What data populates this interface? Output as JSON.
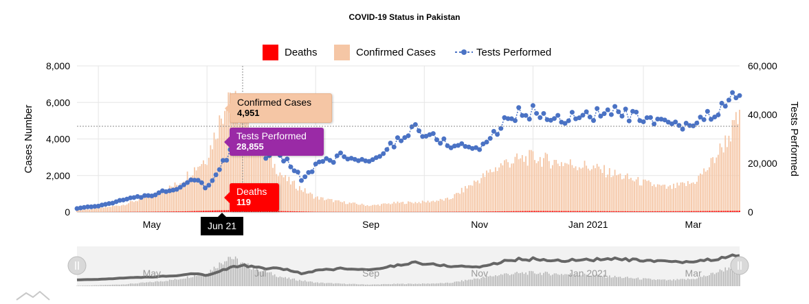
{
  "chart_data": {
    "type": "bar",
    "title": "COVID-19 Status in Pakistan",
    "ylabel_left": "Cases Number",
    "ylabel_right": "Tests Performed",
    "ylim_left": [
      0,
      8000
    ],
    "ylim_right": [
      0,
      60000
    ],
    "y_ticks_left": [
      "8,000",
      "6,000",
      "4,000",
      "2,000",
      "0"
    ],
    "y_ticks_right": [
      "60,000",
      "40,000",
      "20,000",
      "0"
    ],
    "x_ticks": [
      "May",
      "Jun 21",
      "Sep",
      "Nov",
      "Jan 2021",
      "Mar"
    ],
    "navigator_ticks": [
      "May",
      "Jul",
      "Sep",
      "Nov",
      "Jan 2021",
      "Mar"
    ],
    "x_range": [
      "2020-03-20",
      "2021-03-27"
    ],
    "grid": true,
    "legend_position": "top",
    "series": [
      {
        "name": "Deaths",
        "color": "#ff0000",
        "type": "bar",
        "axis": "left",
        "points": [
          [
            "2020-04-01",
            3
          ],
          [
            "2020-05-01",
            20
          ],
          [
            "2020-05-20",
            40
          ],
          [
            "2020-06-10",
            100
          ],
          [
            "2020-06-21",
            119
          ],
          [
            "2020-07-10",
            60
          ],
          [
            "2020-08-01",
            15
          ],
          [
            "2020-09-01",
            6
          ],
          [
            "2020-10-01",
            10
          ],
          [
            "2020-11-01",
            25
          ],
          [
            "2020-12-01",
            60
          ],
          [
            "2021-01-01",
            50
          ],
          [
            "2021-02-01",
            40
          ],
          [
            "2021-03-01",
            50
          ],
          [
            "2021-03-26",
            70
          ]
        ]
      },
      {
        "name": "Confirmed Cases",
        "color": "#f5c6a5",
        "type": "bar",
        "axis": "left",
        "points": [
          [
            "2020-03-20",
            100
          ],
          [
            "2020-04-01",
            200
          ],
          [
            "2020-04-15",
            400
          ],
          [
            "2020-05-01",
            900
          ],
          [
            "2020-05-15",
            1500
          ],
          [
            "2020-06-01",
            3000
          ],
          [
            "2020-06-10",
            5500
          ],
          [
            "2020-06-13",
            6800
          ],
          [
            "2020-06-21",
            4951
          ],
          [
            "2020-07-01",
            3500
          ],
          [
            "2020-07-15",
            1800
          ],
          [
            "2020-08-01",
            800
          ],
          [
            "2020-08-15",
            550
          ],
          [
            "2020-09-01",
            350
          ],
          [
            "2020-09-15",
            500
          ],
          [
            "2020-10-01",
            550
          ],
          [
            "2020-10-15",
            700
          ],
          [
            "2020-11-01",
            1800
          ],
          [
            "2020-11-15",
            2700
          ],
          [
            "2020-12-01",
            3000
          ],
          [
            "2020-12-10",
            2800
          ],
          [
            "2021-01-01",
            2500
          ],
          [
            "2021-01-15",
            2100
          ],
          [
            "2021-02-01",
            1600
          ],
          [
            "2021-02-15",
            1300
          ],
          [
            "2021-03-01",
            1600
          ],
          [
            "2021-03-10",
            2500
          ],
          [
            "2021-03-20",
            4000
          ],
          [
            "2021-03-26",
            5000
          ]
        ]
      },
      {
        "name": "Tests Performed",
        "color": "#4a72c4",
        "type": "line",
        "axis": "right",
        "points": [
          [
            "2020-03-20",
            1500
          ],
          [
            "2020-04-01",
            2500
          ],
          [
            "2020-04-15",
            5000
          ],
          [
            "2020-05-01",
            7000
          ],
          [
            "2020-05-15",
            10000
          ],
          [
            "2020-05-25",
            14000
          ],
          [
            "2020-06-01",
            10000
          ],
          [
            "2020-06-10",
            20000
          ],
          [
            "2020-06-15",
            26000
          ],
          [
            "2020-06-21",
            28855
          ],
          [
            "2020-07-01",
            24000
          ],
          [
            "2020-07-15",
            22000
          ],
          [
            "2020-07-25",
            13000
          ],
          [
            "2020-08-01",
            19000
          ],
          [
            "2020-08-15",
            23000
          ],
          [
            "2020-09-01",
            20000
          ],
          [
            "2020-09-15",
            29000
          ],
          [
            "2020-09-25",
            35000
          ],
          [
            "2020-10-01",
            32000
          ],
          [
            "2020-10-15",
            28000
          ],
          [
            "2020-11-01",
            26000
          ],
          [
            "2020-11-10",
            33000
          ],
          [
            "2020-11-20",
            40000
          ],
          [
            "2020-12-01",
            41000
          ],
          [
            "2020-12-15",
            38000
          ],
          [
            "2021-01-01",
            40000
          ],
          [
            "2021-01-15",
            41000
          ],
          [
            "2021-02-01",
            38000
          ],
          [
            "2021-02-15",
            35000
          ],
          [
            "2021-03-01",
            36000
          ],
          [
            "2021-03-15",
            42000
          ],
          [
            "2021-03-26",
            48000
          ]
        ]
      }
    ],
    "tooltip": {
      "date": "Jun 21",
      "items": [
        {
          "name": "Confirmed Cases",
          "value": "4,951"
        },
        {
          "name": "Tests Performed",
          "value": "28,855"
        },
        {
          "name": "Deaths",
          "value": "119"
        }
      ]
    }
  }
}
